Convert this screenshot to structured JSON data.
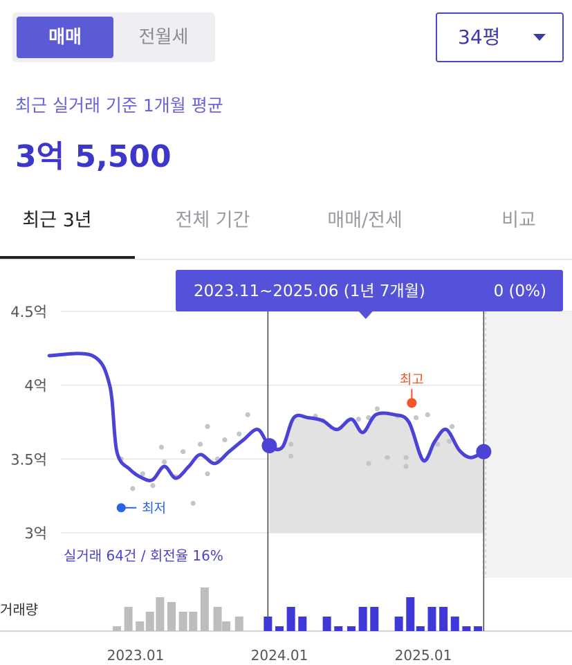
{
  "trade_toggle": {
    "active": "매매",
    "inactive": "전월세"
  },
  "size_select": {
    "value": "34평"
  },
  "summary": {
    "subtitle": "최근 실거래 기준 1개월 평균",
    "price": "3억 5,500"
  },
  "tabs": [
    {
      "label": "최근 3년",
      "active": true
    },
    {
      "label": "전체 기간",
      "active": false
    },
    {
      "label": "매매/전세",
      "active": false
    },
    {
      "label": "비교",
      "active": false
    }
  ],
  "tooltip": {
    "range": "2023.11~2025.06 (1년 7개월)",
    "change": "0 (0%)"
  },
  "colors": {
    "accent": "#4a43d6",
    "high_marker": "#f2552a",
    "low_marker": "#2b62e8",
    "volume_bar_gray": "#bdbdbd",
    "volume_bar_selected": "#3f38d8",
    "selection_fill": "#e2e2e2"
  },
  "chart_data": {
    "type": "line",
    "y_tick_labels": [
      "4.5억",
      "4억",
      "3.5억",
      "3억"
    ],
    "x_tick_labels": [
      "2023.01",
      "2024.01",
      "2025.01"
    ],
    "ylim": [
      3.0,
      4.5
    ],
    "y_unit": "억",
    "series": [
      {
        "values": [
          [
            2022.4,
            4.2
          ],
          [
            2022.7,
            4.2
          ],
          [
            2022.82,
            4.0
          ],
          [
            2022.87,
            3.55
          ],
          [
            2022.96,
            3.43
          ],
          [
            2023.05,
            3.37
          ],
          [
            2023.12,
            3.36
          ],
          [
            2023.2,
            3.45
          ],
          [
            2023.28,
            3.37
          ],
          [
            2023.37,
            3.45
          ],
          [
            2023.45,
            3.53
          ],
          [
            2023.55,
            3.47
          ],
          [
            2023.65,
            3.55
          ],
          [
            2023.75,
            3.63
          ],
          [
            2023.85,
            3.7
          ],
          [
            2023.93,
            3.59
          ],
          [
            2024.02,
            3.58
          ],
          [
            2024.1,
            3.78
          ],
          [
            2024.2,
            3.78
          ],
          [
            2024.3,
            3.76
          ],
          [
            2024.4,
            3.7
          ],
          [
            2024.5,
            3.77
          ],
          [
            2024.58,
            3.68
          ],
          [
            2024.67,
            3.8
          ],
          [
            2024.8,
            3.8
          ],
          [
            2024.9,
            3.75
          ],
          [
            2025.0,
            3.49
          ],
          [
            2025.08,
            3.62
          ],
          [
            2025.16,
            3.7
          ],
          [
            2025.25,
            3.56
          ],
          [
            2025.33,
            3.51
          ],
          [
            2025.42,
            3.55
          ]
        ]
      }
    ],
    "transactions": [
      [
        2022.9,
        3.5
      ],
      [
        2022.98,
        3.3
      ],
      [
        2023.05,
        3.4
      ],
      [
        2023.12,
        3.32
      ],
      [
        2023.18,
        3.58
      ],
      [
        2023.2,
        3.48
      ],
      [
        2023.28,
        3.38
      ],
      [
        2023.33,
        3.55
      ],
      [
        2023.4,
        3.2
      ],
      [
        2023.45,
        3.6
      ],
      [
        2023.5,
        3.72
      ],
      [
        2023.57,
        3.5
      ],
      [
        2023.62,
        3.63
      ],
      [
        2023.72,
        3.67
      ],
      [
        2023.78,
        3.8
      ],
      [
        2024.08,
        3.6
      ],
      [
        2024.08,
        3.52
      ],
      [
        2024.25,
        3.79
      ],
      [
        2024.3,
        3.76
      ],
      [
        2024.55,
        3.77
      ],
      [
        2024.62,
        3.78
      ],
      [
        2024.68,
        3.84
      ],
      [
        2024.75,
        3.51
      ],
      [
        2024.82,
        3.79
      ],
      [
        2024.88,
        3.51
      ],
      [
        2024.95,
        3.78
      ],
      [
        2025.03,
        3.8
      ],
      [
        2025.1,
        3.6
      ],
      [
        2025.2,
        3.72
      ],
      [
        2023.5,
        3.4
      ],
      [
        2024.62,
        3.47
      ],
      [
        2024.88,
        3.45
      ],
      [
        2025.18,
        3.62
      ]
    ],
    "selection": {
      "start": 2023.92,
      "end": 2025.42
    },
    "high": {
      "label": "최고",
      "x": 2024.92,
      "y": 3.88
    },
    "low": {
      "label": "최저",
      "x": 2022.9,
      "y": 3.17
    },
    "stats_text": "실거래 64건 / 회전율 16%",
    "volume_label": "거래량",
    "volume": [
      [
        2022.87,
        1
      ],
      [
        2022.95,
        5
      ],
      [
        2023.03,
        2
      ],
      [
        2023.1,
        4
      ],
      [
        2023.17,
        7
      ],
      [
        2023.25,
        6
      ],
      [
        2023.33,
        4
      ],
      [
        2023.4,
        4
      ],
      [
        2023.48,
        9
      ],
      [
        2023.57,
        5
      ],
      [
        2023.63,
        2
      ],
      [
        2023.72,
        3
      ],
      [
        2023.92,
        3
      ],
      [
        2024.0,
        1
      ],
      [
        2024.08,
        5
      ],
      [
        2024.16,
        3
      ],
      [
        2024.33,
        3
      ],
      [
        2024.41,
        1
      ],
      [
        2024.5,
        1
      ],
      [
        2024.58,
        5
      ],
      [
        2024.66,
        5
      ],
      [
        2024.83,
        3
      ],
      [
        2024.91,
        7
      ],
      [
        2024.98,
        1
      ],
      [
        2025.06,
        5
      ],
      [
        2025.14,
        5
      ],
      [
        2025.22,
        3
      ],
      [
        2025.3,
        1
      ],
      [
        2025.38,
        1
      ]
    ],
    "volume_max": 10
  }
}
